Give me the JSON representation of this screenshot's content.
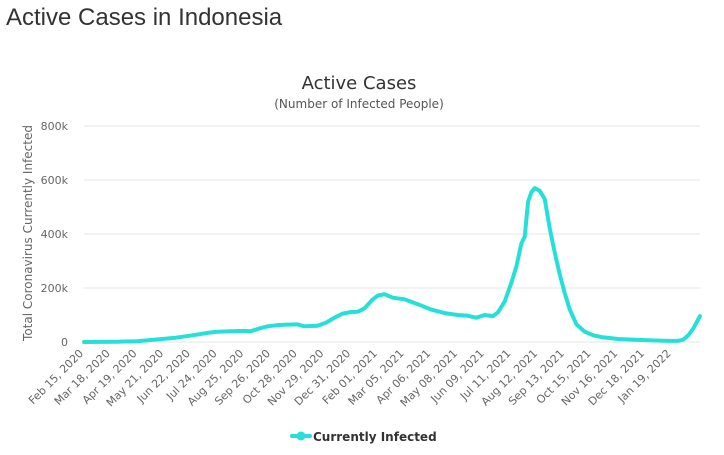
{
  "page": {
    "title": "Active Cases in Indonesia"
  },
  "chart_data": {
    "type": "line",
    "title": "Active Cases",
    "subtitle": "(Number of Infected People)",
    "ylabel": "Total Coronavirus Currently Infected",
    "xlabel": "",
    "ylim": [
      0,
      800000
    ],
    "yticks": [
      0,
      200000,
      400000,
      600000,
      800000
    ],
    "ytick_labels": [
      "0",
      "200k",
      "400k",
      "600k",
      "800k"
    ],
    "xlim": [
      0,
      738
    ],
    "xticks": [
      {
        "day": 0,
        "label": "Feb 15, 2020"
      },
      {
        "day": 32,
        "label": "Mar 18, 2020"
      },
      {
        "day": 64,
        "label": "Apr 19, 2020"
      },
      {
        "day": 96,
        "label": "May 21, 2020"
      },
      {
        "day": 128,
        "label": "Jun 22, 2020"
      },
      {
        "day": 160,
        "label": "Jul 24, 2020"
      },
      {
        "day": 192,
        "label": "Aug 25, 2020"
      },
      {
        "day": 224,
        "label": "Sep 26, 2020"
      },
      {
        "day": 256,
        "label": "Oct 28, 2020"
      },
      {
        "day": 288,
        "label": "Nov 29, 2020"
      },
      {
        "day": 320,
        "label": "Dec 31, 2020"
      },
      {
        "day": 352,
        "label": "Feb 01, 2021"
      },
      {
        "day": 384,
        "label": "Mar 05, 2021"
      },
      {
        "day": 416,
        "label": "Apr 06, 2021"
      },
      {
        "day": 448,
        "label": "May 08, 2021"
      },
      {
        "day": 480,
        "label": "Jun 09, 2021"
      },
      {
        "day": 512,
        "label": "Jul 11, 2021"
      },
      {
        "day": 544,
        "label": "Aug 12, 2021"
      },
      {
        "day": 576,
        "label": "Sep 13, 2021"
      },
      {
        "day": 608,
        "label": "Oct 15, 2021"
      },
      {
        "day": 640,
        "label": "Nov 16, 2021"
      },
      {
        "day": 672,
        "label": "Dec 18, 2021"
      },
      {
        "day": 704,
        "label": "Jan 19, 2022"
      }
    ],
    "grid": true,
    "legend": "bottom-center",
    "series": [
      {
        "name": "Currently Infected",
        "color": "#26e0d8",
        "x": [
          0,
          20,
          40,
          64,
          90,
          110,
          130,
          150,
          160,
          176,
          192,
          200,
          210,
          220,
          230,
          240,
          256,
          264,
          280,
          290,
          300,
          310,
          320,
          328,
          336,
          345,
          352,
          360,
          370,
          384,
          400,
          416,
          432,
          448,
          460,
          470,
          480,
          490,
          496,
          504,
          512,
          518,
          524,
          528,
          532,
          536,
          540,
          546,
          552,
          558,
          564,
          570,
          576,
          582,
          590,
          600,
          610,
          620,
          640,
          660,
          680,
          700,
          712,
          718,
          724,
          730,
          738
        ],
        "values": [
          0,
          500,
          1000,
          3000,
          10000,
          16000,
          25000,
          35000,
          38000,
          40000,
          41000,
          40000,
          50000,
          58000,
          62000,
          64000,
          65000,
          58000,
          60000,
          72000,
          90000,
          105000,
          111000,
          112000,
          125000,
          155000,
          172000,
          177000,
          164000,
          158000,
          140000,
          120000,
          107000,
          100000,
          97000,
          90000,
          100000,
          96000,
          110000,
          150000,
          220000,
          280000,
          365000,
          390000,
          520000,
          555000,
          570000,
          560000,
          530000,
          420000,
          330000,
          250000,
          180000,
          120000,
          65000,
          38000,
          25000,
          18000,
          11000,
          8000,
          6000,
          4000,
          4000,
          9000,
          25000,
          50000,
          96000
        ]
      }
    ]
  }
}
